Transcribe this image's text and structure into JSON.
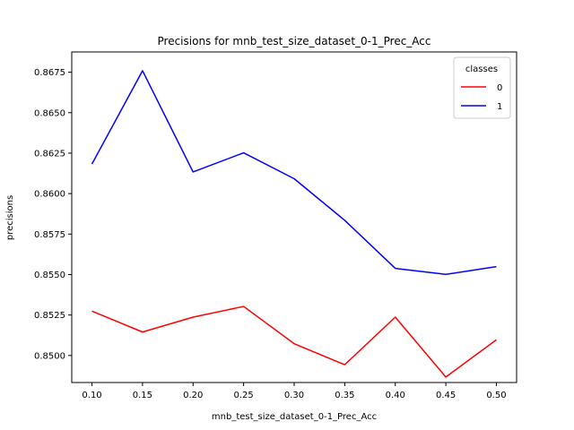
{
  "chart_data": {
    "type": "line",
    "title": "Precisions for mnb_test_size_dataset_0-1_Prec_Acc",
    "xlabel": "mnb_test_size_dataset_0-1_Prec_Acc",
    "ylabel": "precisions",
    "x": [
      0.1,
      0.15,
      0.2,
      0.25,
      0.3,
      0.35,
      0.4,
      0.45,
      0.5
    ],
    "x_tick_labels": [
      "0.10",
      "0.15",
      "0.20",
      "0.25",
      "0.30",
      "0.35",
      "0.40",
      "0.45",
      "0.50"
    ],
    "y_ticks": [
      0.85,
      0.8525,
      0.855,
      0.8575,
      0.86,
      0.8625,
      0.865,
      0.8675
    ],
    "y_tick_labels": [
      "0.8500",
      "0.8525",
      "0.8550",
      "0.8575",
      "0.8600",
      "0.8625",
      "0.8650",
      "0.8675"
    ],
    "xlim": [
      0.08,
      0.52
    ],
    "ylim": [
      0.84833,
      0.86875
    ],
    "grid": false,
    "legend": {
      "title": "classes",
      "placement": "upper right"
    },
    "series": [
      {
        "name": "0",
        "color": "#ff0000",
        "values": [
          0.85274,
          0.85145,
          0.85237,
          0.85303,
          0.85073,
          0.84943,
          0.85237,
          0.84867,
          0.85097
        ]
      },
      {
        "name": "1",
        "color": "#0000ff",
        "values": [
          0.86183,
          0.86759,
          0.86134,
          0.86252,
          0.86092,
          0.85835,
          0.85538,
          0.85501,
          0.85549
        ]
      }
    ]
  }
}
